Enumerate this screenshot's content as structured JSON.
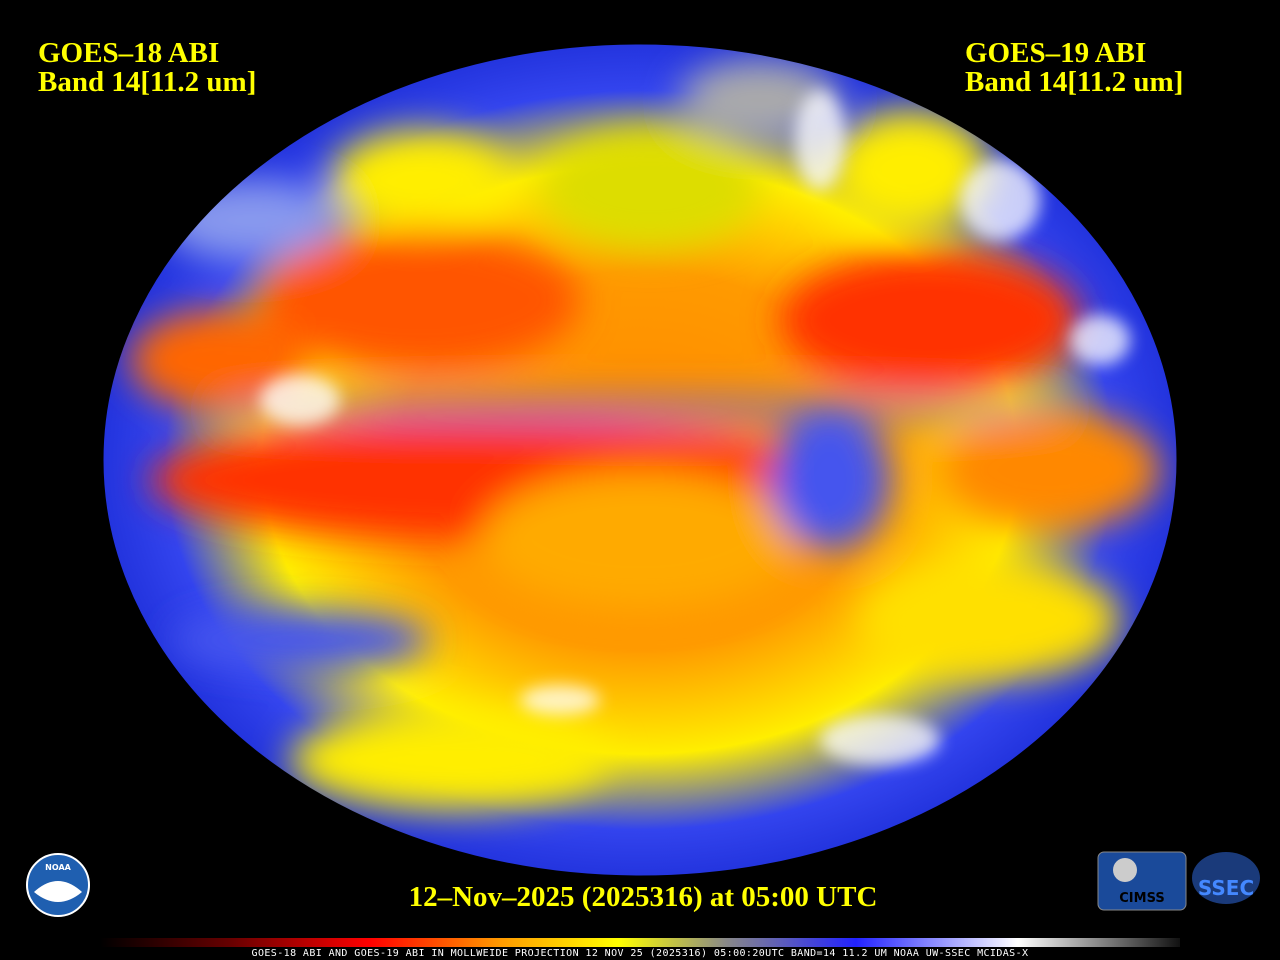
{
  "left_label": {
    "satellite": "GOES–18 ABI",
    "band": "Band 14[11.2 um]"
  },
  "right_label": {
    "satellite": "GOES–19 ABI",
    "band": "Band 14[11.2 um]"
  },
  "timestamp": "12–Nov–2025 (2025316) at 05:00 UTC",
  "footer": "GOES-18 ABI AND GOES-19 ABI IN MOLLWEIDE PROJECTION 12 NOV 25 (2025316) 05:00:20UTC BAND=14 11.2 UM NOAA UW-SSEC MCIDAS-X",
  "logos": {
    "noaa": "NOAA",
    "cimss": "CIMSS",
    "ssec": "SSEC"
  }
}
